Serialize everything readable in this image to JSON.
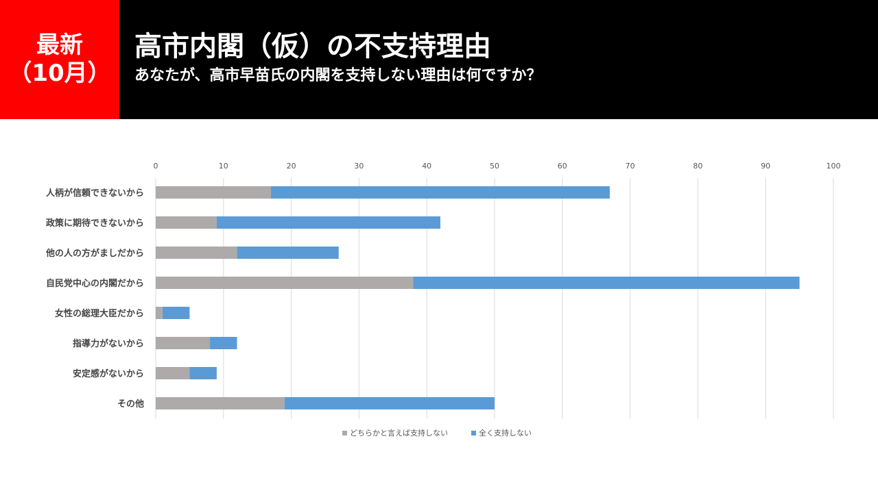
{
  "header": {
    "badge_line1": "最新",
    "badge_line2": "（10月）",
    "title": "高市内閣（仮）の不支持理由",
    "subtitle": "あなたが、高市早苗氏の内閣を支持しない理由は何ですか？",
    "background_color": "#000000",
    "badge_color": "#ff0000"
  },
  "chart_data": {
    "type": "bar",
    "orientation": "horizontal",
    "stacked": true,
    "title": "",
    "xlabel": "",
    "ylabel": "",
    "xlim": [
      0,
      100
    ],
    "ticks": [
      0,
      10,
      20,
      30,
      40,
      50,
      60,
      70,
      80,
      90,
      100
    ],
    "tick_labels": [
      "0",
      "10",
      "20",
      "30",
      "40",
      "50",
      "60",
      "70",
      "80",
      "90",
      "100"
    ],
    "grid": true,
    "legend_position": "bottom",
    "categories": [
      "人柄が信頼できないから",
      "政策に期待できないから",
      "他の人の方がましだから",
      "自民党中心の内閣だから",
      "女性の総理大臣だから",
      "指導力がないから",
      "安定感がないから",
      "その他"
    ],
    "series": [
      {
        "name": "どちらかと言えば支持しない",
        "color": "#aeaaaa",
        "values": [
          17,
          9,
          12,
          38,
          1,
          8,
          5,
          19
        ]
      },
      {
        "name": "全く支持しない",
        "color": "#5b9bd5",
        "values": [
          50,
          33,
          15,
          57,
          4,
          4,
          4,
          31
        ]
      }
    ]
  }
}
